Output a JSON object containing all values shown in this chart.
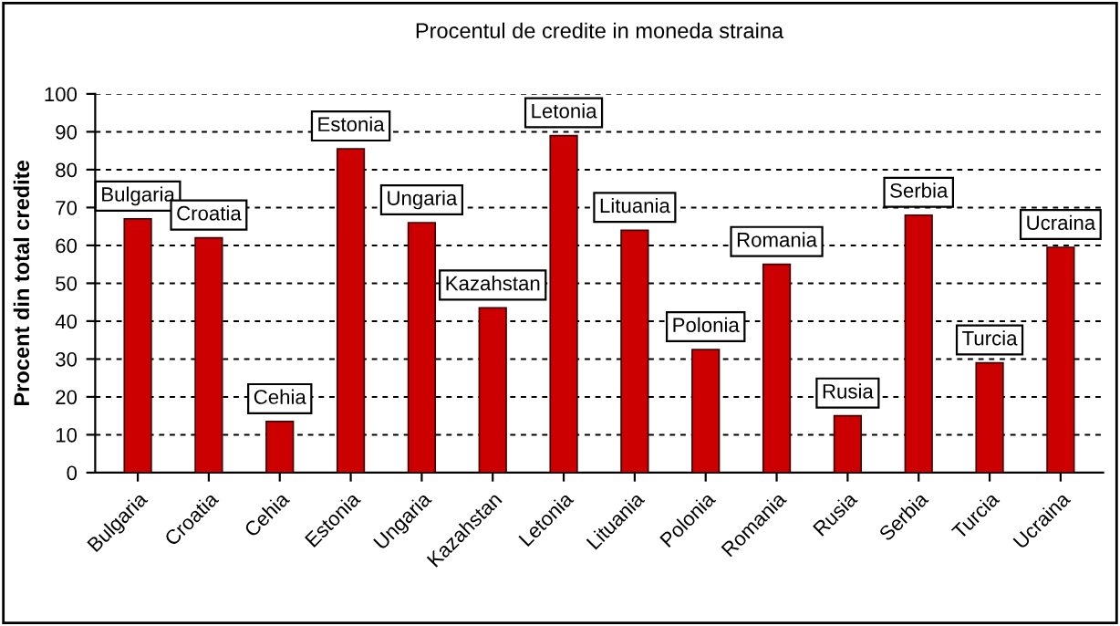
{
  "chart_data": {
    "type": "bar",
    "title": "Procentul de credite in moneda straina",
    "ylabel": "Procent din total credite",
    "categories": [
      "Bulgaria",
      "Croatia",
      "Cehia",
      "Estonia",
      "Ungaria",
      "Kazahstan",
      "Letonia",
      "Lituania",
      "Polonia",
      "Romania",
      "Rusia",
      "Serbia",
      "Turcia",
      "Ucraina"
    ],
    "values": [
      67,
      62,
      13.5,
      85.5,
      66,
      43.5,
      89,
      64,
      32.5,
      55,
      15,
      68,
      29,
      59.5
    ],
    "color": "#cc0000",
    "ylim": [
      0,
      100
    ],
    "yticks": [
      0,
      10,
      20,
      30,
      40,
      50,
      60,
      70,
      80,
      90,
      100
    ],
    "grid": "y",
    "legend": false,
    "annotations": [
      {
        "text": "Bulgaria",
        "x": "Bulgaria",
        "y": 67
      },
      {
        "text": "Croatia",
        "x": "Croatia",
        "y": 62
      },
      {
        "text": "Cehia",
        "x": "Cehia",
        "y": 13.5
      },
      {
        "text": "Estonia",
        "x": "Estonia",
        "y": 85.5
      },
      {
        "text": "Ungaria",
        "x": "Ungaria",
        "y": 66
      },
      {
        "text": "Kazahstan",
        "x": "Kazahstan",
        "y": 43.5
      },
      {
        "text": "Letonia",
        "x": "Letonia",
        "y": 89
      },
      {
        "text": "Lituania",
        "x": "Lituania",
        "y": 64
      },
      {
        "text": "Polonia",
        "x": "Polonia",
        "y": 32.5
      },
      {
        "text": "Romania",
        "x": "Romania",
        "y": 55
      },
      {
        "text": "Rusia",
        "x": "Rusia",
        "y": 15
      },
      {
        "text": "Serbia",
        "x": "Serbia",
        "y": 68
      },
      {
        "text": "Turcia",
        "x": "Turcia",
        "y": 29
      },
      {
        "text": "Ucraina",
        "x": "Ucraina",
        "y": 59.5
      }
    ]
  }
}
